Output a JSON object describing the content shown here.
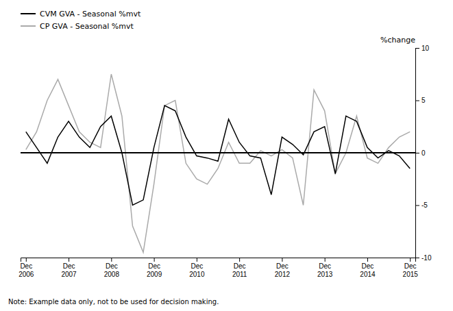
{
  "chart_data": {
    "type": "line",
    "ylabel": "%change",
    "annotations": [
      "Note: Example data only, not to be used for decision making."
    ],
    "categories": [
      "Dec\n2006",
      null,
      null,
      null,
      "Dec\n2007",
      null,
      null,
      null,
      "Dec\n2008",
      null,
      null,
      null,
      "Dec\n2009",
      null,
      null,
      null,
      "Dec\n2010",
      null,
      null,
      null,
      "Dec\n2011",
      null,
      null,
      null,
      "Dec\n2012",
      null,
      null,
      null,
      "Dec\n2013",
      null,
      null,
      null,
      "Dec\n2014",
      null,
      null,
      null,
      "Dec\n2015"
    ],
    "series": [
      {
        "name": "CVM GVA - Seasonal %mvt",
        "color": "#000000",
        "values": [
          2.0,
          0.5,
          -1.0,
          1.5,
          3.0,
          1.5,
          0.5,
          2.5,
          3.5,
          0.0,
          -5.0,
          -4.5,
          0.5,
          4.5,
          4.0,
          1.5,
          -0.3,
          -0.5,
          -0.8,
          3.2,
          1.0,
          -0.3,
          -0.5,
          -4.0,
          1.5,
          0.8,
          -0.2,
          2.0,
          2.5,
          -2.0,
          3.5,
          3.0,
          0.5,
          -0.5,
          0.2,
          -0.3,
          -1.5
        ]
      },
      {
        "name": "CP GVA - Seasonal %mvt",
        "color": "#aaaaaa",
        "values": [
          0.3,
          2.0,
          5.0,
          7.0,
          4.5,
          2.0,
          1.0,
          0.5,
          7.5,
          3.5,
          -7.0,
          -9.5,
          -3.0,
          4.5,
          5.0,
          -1.0,
          -2.5,
          -3.0,
          -1.5,
          1.0,
          -1.0,
          -1.0,
          0.2,
          -0.3,
          0.3,
          -0.5,
          -5.0,
          6.0,
          4.0,
          -2.0,
          0.0,
          3.5,
          -0.5,
          -1.0,
          0.5,
          1.5,
          2.0
        ]
      }
    ],
    "ylim": [
      -10,
      10
    ],
    "yticks": [
      -10,
      -5,
      0,
      5,
      10
    ],
    "grid": false,
    "legend": "upper left"
  }
}
